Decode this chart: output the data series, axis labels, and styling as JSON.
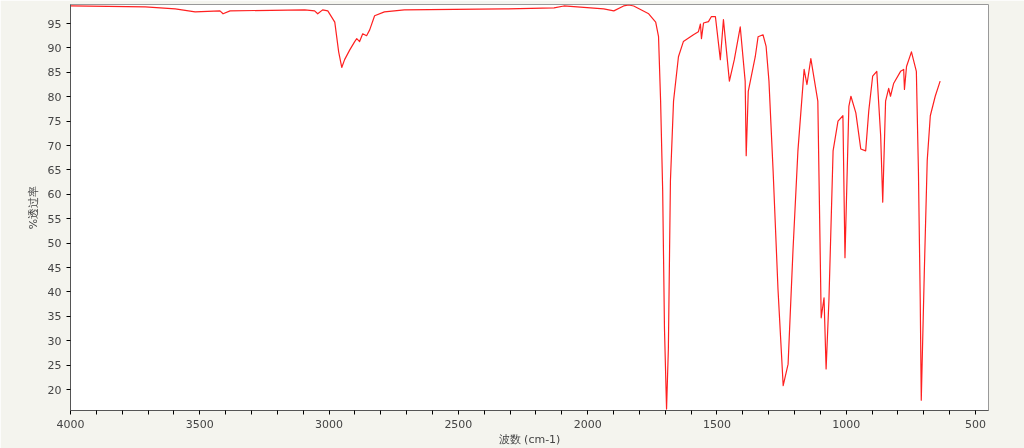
{
  "chart_data": {
    "type": "line",
    "xlabel": "波数 (cm-1)",
    "ylabel": "%透过率",
    "xlim": [
      4000,
      450
    ],
    "ylim": [
      15.7,
      98.9
    ],
    "xticks": [
      4000,
      {
        "value": 3900,
        "label": null
      },
      {
        "value": 3800,
        "label": null
      },
      {
        "value": 3700,
        "label": null
      },
      {
        "value": 3600,
        "label": null
      },
      3500,
      {
        "value": 3400,
        "label": null
      },
      {
        "value": 3300,
        "label": null
      },
      {
        "value": 3200,
        "label": null
      },
      {
        "value": 3100,
        "label": null
      },
      3000,
      {
        "value": 2900,
        "label": null
      },
      {
        "value": 2800,
        "label": null
      },
      {
        "value": 2700,
        "label": null
      },
      {
        "value": 2600,
        "label": null
      },
      2500,
      {
        "value": 2400,
        "label": null
      },
      {
        "value": 2300,
        "label": null
      },
      {
        "value": 2200,
        "label": null
      },
      {
        "value": 2100,
        "label": null
      },
      2000,
      {
        "value": 1900,
        "label": null
      },
      {
        "value": 1800,
        "label": null
      },
      {
        "value": 1700,
        "label": null
      },
      {
        "value": 1600,
        "label": null
      },
      1500,
      {
        "value": 1400,
        "label": null
      },
      {
        "value": 1300,
        "label": null
      },
      {
        "value": 1200,
        "label": null
      },
      {
        "value": 1100,
        "label": null
      },
      1000,
      {
        "value": 900,
        "label": null
      },
      {
        "value": 800,
        "label": null
      },
      {
        "value": 700,
        "label": null
      },
      {
        "value": 600,
        "label": null
      },
      500
    ],
    "yticks": [
      20,
      25,
      30,
      35,
      40,
      45,
      50,
      55,
      60,
      65,
      70,
      75,
      80,
      85,
      90,
      95
    ],
    "grid": false,
    "marker": "none",
    "line_style": "solid",
    "series": [
      {
        "color": "#ff2020",
        "x": [
          4000,
          3711,
          3595,
          3518,
          3422,
          3410,
          3383,
          3094,
          3056,
          3044,
          3025,
          3005,
          2978,
          2963,
          2951,
          2940,
          2920,
          2901,
          2893,
          2882,
          2870,
          2855,
          2843,
          2824,
          2786,
          2709,
          2323,
          2130,
          2092,
          1938,
          1899,
          1861,
          1841,
          1822,
          1764,
          1737,
          1726,
          1718,
          1710,
          1703,
          1695,
          1688,
          1680,
          1668,
          1649,
          1630,
          1591,
          1572,
          1564,
          1560,
          1552,
          1533,
          1522,
          1506,
          1487,
          1475,
          1452,
          1433,
          1410,
          1391,
          1387,
          1379,
          1352,
          1341,
          1322,
          1310,
          1299,
          1283,
          1264,
          1244,
          1225,
          1206,
          1187,
          1163,
          1152,
          1137,
          1110,
          1097,
          1086,
          1078,
          1067,
          1051,
          1032,
          1013,
          1005,
          990,
          982,
          963,
          944,
          925,
          913,
          898,
          882,
          867,
          859,
          848,
          836,
          829,
          817,
          790,
          778,
          775,
          767,
          748,
          729,
          721,
          714,
          710,
          698,
          687,
          675,
          656,
          637
        ],
        "values": [
          98.6,
          98.4,
          98.0,
          97.4,
          97.6,
          97.0,
          97.6,
          97.8,
          97.6,
          97.0,
          97.8,
          97.6,
          95.3,
          89.2,
          86.0,
          87.6,
          89.6,
          91.3,
          91.9,
          91.3,
          92.9,
          92.5,
          93.7,
          96.6,
          97.4,
          97.8,
          98.0,
          98.2,
          98.6,
          98.0,
          97.6,
          98.6,
          98.8,
          98.6,
          97.0,
          95.3,
          92.3,
          79.1,
          60.8,
          32.4,
          16.0,
          28.3,
          62.8,
          79.1,
          88.2,
          91.3,
          92.7,
          93.3,
          94.9,
          91.9,
          95.1,
          95.4,
          96.4,
          96.4,
          87.6,
          95.8,
          83.2,
          87.6,
          94.3,
          83.2,
          67.9,
          81.1,
          88.2,
          92.3,
          92.7,
          90.3,
          83.2,
          64.9,
          40.5,
          20.8,
          25.2,
          48.6,
          68.9,
          85.6,
          82.5,
          87.8,
          79.1,
          34.7,
          38.8,
          24.2,
          38.4,
          68.9,
          75.0,
          76.1,
          47.0,
          78.0,
          80.1,
          76.7,
          69.3,
          68.9,
          77.1,
          84.2,
          85.2,
          72.0,
          58.4,
          79.1,
          81.7,
          80.1,
          82.7,
          85.2,
          85.6,
          81.5,
          86.2,
          89.2,
          85.2,
          64.9,
          38.4,
          17.8,
          44.6,
          66.9,
          76.1,
          80.1,
          83.2
        ]
      }
    ]
  }
}
